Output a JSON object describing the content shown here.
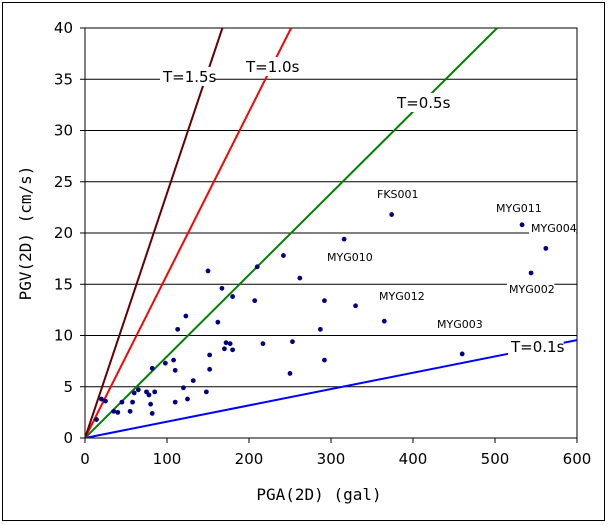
{
  "chart_data": {
    "type": "scatter",
    "xlabel": "PGA(2D) (gal)",
    "ylabel": "PGV(2D) (cm/s)",
    "xlim": [
      0,
      600
    ],
    "ylim": [
      0,
      40
    ],
    "xticks": [
      0,
      100,
      200,
      300,
      400,
      500,
      600
    ],
    "yticks": [
      0,
      5,
      10,
      15,
      20,
      25,
      30,
      35,
      40
    ],
    "grid": "horizontal",
    "point_color": "#000080",
    "points": [
      [
        14,
        1.8
      ],
      [
        20,
        3.8
      ],
      [
        25,
        3.6
      ],
      [
        35,
        2.6
      ],
      [
        40,
        2.5
      ],
      [
        45,
        3.5
      ],
      [
        55,
        2.6
      ],
      [
        58,
        3.5
      ],
      [
        60,
        4.4
      ],
      [
        65,
        4.7
      ],
      [
        75,
        4.5
      ],
      [
        78,
        4.2
      ],
      [
        80,
        3.3
      ],
      [
        82,
        2.4
      ],
      [
        82,
        6.8
      ],
      [
        85,
        4.5
      ],
      [
        98,
        7.3
      ],
      [
        108,
        7.6
      ],
      [
        110,
        3.5
      ],
      [
        110,
        6.6
      ],
      [
        113,
        10.6
      ],
      [
        120,
        4.9
      ],
      [
        123,
        11.9
      ],
      [
        125,
        3.8
      ],
      [
        132,
        5.6
      ],
      [
        148,
        4.5
      ],
      [
        150,
        16.3
      ],
      [
        152,
        6.7
      ],
      [
        152,
        8.1
      ],
      [
        162,
        11.3
      ],
      [
        167,
        14.6
      ],
      [
        170,
        8.7
      ],
      [
        172,
        9.3
      ],
      [
        177,
        9.2
      ],
      [
        180,
        13.8
      ],
      [
        180,
        8.6
      ],
      [
        207,
        13.4
      ],
      [
        210,
        16.7
      ],
      [
        217,
        9.2
      ],
      [
        242,
        17.8
      ],
      [
        250,
        6.3
      ],
      [
        253,
        9.4
      ],
      [
        262,
        15.6
      ],
      [
        287,
        10.6
      ],
      [
        292,
        13.4
      ],
      [
        292,
        7.6
      ],
      [
        316,
        19.4
      ],
      [
        330,
        12.9
      ],
      [
        365,
        11.4
      ],
      [
        374,
        21.8
      ],
      [
        460,
        8.2
      ],
      [
        533,
        20.8
      ],
      [
        544,
        16.1
      ],
      [
        562,
        18.5
      ]
    ],
    "lines": [
      {
        "name": "T=0.1s",
        "slope": 0.01592,
        "color": "#0000ff"
      },
      {
        "name": "T=0.5s",
        "slope": 0.07958,
        "color": "#008000"
      },
      {
        "name": "T=1.0s",
        "slope": 0.15915,
        "color": "#ff0000"
      },
      {
        "name": "T=1.5s",
        "slope": 0.23873,
        "color": "#660000"
      }
    ],
    "annotations": [
      {
        "text": "FKS001",
        "x": 374,
        "y": 21.8
      },
      {
        "text": "MYG011",
        "x": 533,
        "y": 20.8
      },
      {
        "text": "MYG004",
        "x": 562,
        "y": 18.5
      },
      {
        "text": "MYG010",
        "x": 316,
        "y": 19.4
      },
      {
        "text": "MYG002",
        "x": 544,
        "y": 16.1
      },
      {
        "text": "MYG012",
        "x": 365,
        "y": 11.4
      },
      {
        "text": "MYG003",
        "x": 460,
        "y": 8.2
      }
    ]
  }
}
